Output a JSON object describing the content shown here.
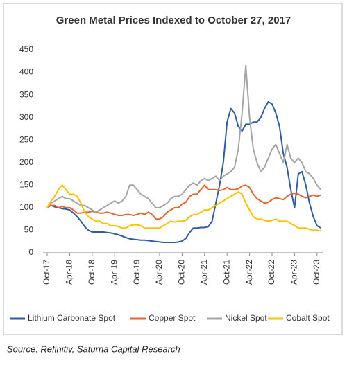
{
  "chart_data": {
    "type": "line",
    "title": "Green Metal Prices Indexed to October 27, 2017",
    "source": "Source: Refinitiv, Saturna Capital Research",
    "categories": [
      "Oct-17",
      null,
      null,
      null,
      null,
      null,
      "Apr-18",
      null,
      null,
      null,
      null,
      null,
      "Oct-18",
      null,
      null,
      null,
      null,
      null,
      "Apr-19",
      null,
      null,
      null,
      null,
      null,
      "Oct-19",
      null,
      null,
      null,
      null,
      null,
      "Apr-20",
      null,
      null,
      null,
      null,
      null,
      "Oct-20",
      null,
      null,
      null,
      null,
      null,
      "Apr-21",
      null,
      null,
      null,
      null,
      null,
      "Oct-21",
      null,
      null,
      null,
      null,
      null,
      "Apr-22",
      null,
      null,
      null,
      null,
      null,
      "Oct-22",
      null,
      null,
      null,
      null,
      null,
      "Apr-23",
      null,
      null,
      null,
      null,
      null,
      "Oct-23",
      null
    ],
    "ylim": [
      0,
      450
    ],
    "yticks": [
      0,
      50,
      100,
      150,
      200,
      250,
      300,
      350,
      400,
      450
    ],
    "grid": false,
    "legend": "bottom",
    "series": [
      {
        "name": "Lithium Carbonate Spot",
        "color": "#2e5aa8",
        "values": [
          100,
          105,
          102,
          100,
          98,
          97,
          95,
          88,
          80,
          70,
          58,
          50,
          46,
          46,
          46,
          46,
          45,
          44,
          42,
          40,
          37,
          34,
          31,
          30,
          29,
          28,
          28,
          27,
          26,
          25,
          24,
          23,
          23,
          23,
          23,
          24,
          26,
          32,
          45,
          55,
          55,
          56,
          56,
          58,
          70,
          110,
          150,
          200,
          290,
          320,
          310,
          280,
          270,
          285,
          285,
          290,
          290,
          300,
          320,
          335,
          330,
          310,
          280,
          220,
          190,
          140,
          100,
          175,
          180,
          150,
          110,
          80,
          60,
          55
        ]
      },
      {
        "name": "Copper Spot",
        "color": "#e8642a",
        "values": [
          100,
          105,
          105,
          100,
          103,
          100,
          100,
          95,
          88,
          88,
          90,
          90,
          92,
          90,
          88,
          88,
          90,
          88,
          85,
          83,
          83,
          85,
          85,
          83,
          85,
          88,
          85,
          90,
          85,
          75,
          75,
          80,
          90,
          95,
          100,
          100,
          108,
          112,
          125,
          130,
          130,
          140,
          150,
          140,
          140,
          140,
          138,
          140,
          145,
          140,
          140,
          142,
          148,
          150,
          145,
          130,
          120,
          115,
          110,
          112,
          118,
          122,
          120,
          118,
          125,
          130,
          132,
          130,
          125,
          122,
          125,
          128,
          125,
          128
        ]
      },
      {
        "name": "Nickel Spot",
        "color": "#a5a5a5",
        "values": [
          100,
          110,
          115,
          120,
          125,
          120,
          120,
          115,
          110,
          105,
          105,
          100,
          95,
          90,
          95,
          100,
          105,
          110,
          115,
          110,
          115,
          125,
          150,
          150,
          140,
          130,
          125,
          120,
          110,
          100,
          100,
          105,
          110,
          120,
          125,
          125,
          130,
          140,
          150,
          155,
          150,
          160,
          165,
          160,
          165,
          170,
          160,
          170,
          175,
          180,
          190,
          230,
          310,
          415,
          300,
          230,
          200,
          180,
          190,
          210,
          230,
          240,
          220,
          200,
          240,
          210,
          200,
          210,
          200,
          180,
          175,
          165,
          150,
          140
        ]
      },
      {
        "name": "Cobalt Spot",
        "color": "#ffc000",
        "values": [
          100,
          115,
          125,
          140,
          150,
          140,
          130,
          130,
          125,
          110,
          90,
          80,
          75,
          70,
          70,
          65,
          65,
          60,
          60,
          58,
          55,
          55,
          60,
          62,
          62,
          60,
          55,
          55,
          55,
          55,
          55,
          60,
          65,
          70,
          68,
          70,
          70,
          72,
          80,
          85,
          85,
          90,
          95,
          95,
          100,
          105,
          110,
          115,
          120,
          125,
          130,
          135,
          130,
          110,
          95,
          80,
          75,
          75,
          72,
          70,
          72,
          75,
          70,
          70,
          70,
          65,
          60,
          55,
          55,
          55,
          52,
          50,
          50,
          48
        ]
      }
    ]
  }
}
